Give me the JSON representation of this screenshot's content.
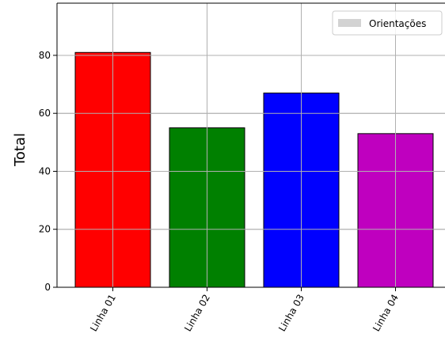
{
  "chart_data": {
    "type": "bar",
    "categories": [
      "Linha 01",
      "Linha 02",
      "Linha 03",
      "Linha 04"
    ],
    "series": [
      {
        "name": "Orientações",
        "values": [
          81,
          55,
          67,
          53
        ],
        "colors": [
          "#ff0000",
          "#008000",
          "#0000ff",
          "#bf00bf"
        ]
      }
    ],
    "ylabel": "Total",
    "xlabel": "",
    "ylim": [
      0,
      98
    ],
    "yticks": [
      0,
      20,
      40,
      60,
      80
    ],
    "grid": true,
    "legend_position": "top-right",
    "legend_swatch_color": "#d3d3d3",
    "edge_color": "#000000",
    "grid_color": "#b0b0b0"
  }
}
